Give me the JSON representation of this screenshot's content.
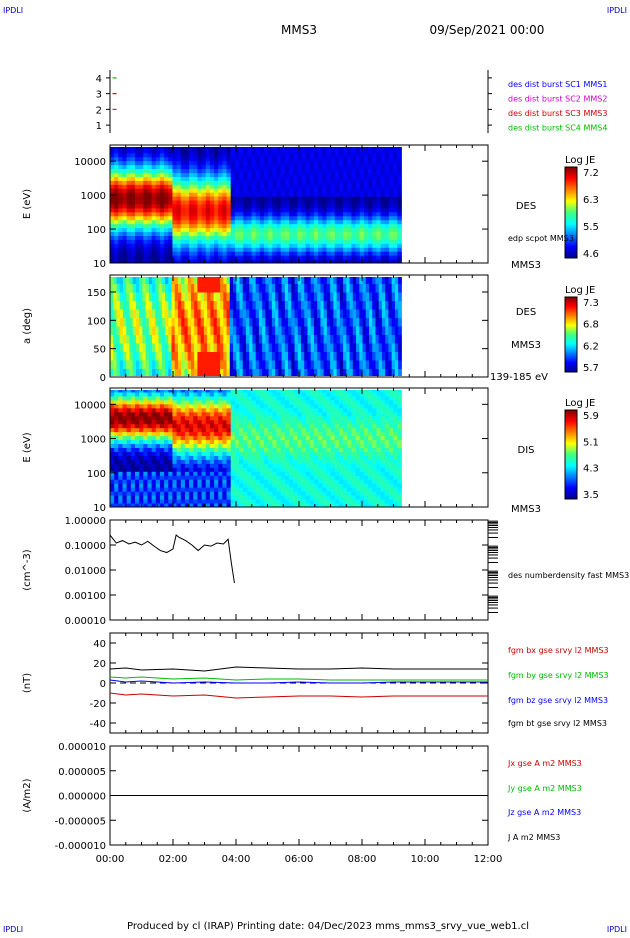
{
  "corners": {
    "tl": "IPDLI",
    "tr": "IPDLI",
    "bl": "IPDLI",
    "br": "IPDLI"
  },
  "header": {
    "spacecraft": "MMS3",
    "datetime": "09/Sep/2021 00:00"
  },
  "footer": {
    "text": "Produced by cl (IRAP)   Printing date: 04/Dec/2023   mms_mms3_srvy_vue_web1.cl"
  },
  "colors": {
    "c1": "#0000ff",
    "c2": "#cc00cc",
    "c3": "#cc0000",
    "c4": "#00bb00",
    "black": "#000000"
  },
  "chart_data": [
    {
      "type": "scatter",
      "ylim": [
        0.5,
        4.5
      ],
      "yticks": [
        "1",
        "2",
        "3",
        "4"
      ],
      "legend": [
        "des dist burst SC1 MMS1",
        "des dist burst SC2 MMS2",
        "des dist burst SC3 MMS3",
        "des dist burst SC4 MMS4"
      ],
      "marks": [
        {
          "sc": 4,
          "hour": 0.05,
          "color": "#00bb00"
        },
        {
          "sc": 3,
          "hour": 0.05,
          "color": "#cc0000"
        },
        {
          "sc": 2,
          "hour": 0.05,
          "color": "#cc00cc"
        }
      ]
    },
    {
      "type": "heatmap",
      "ylabel": "E (eV)",
      "yscale": "log",
      "ylim": [
        10,
        30000
      ],
      "yticks": [
        "10",
        "100",
        "1000",
        "10000"
      ],
      "data_end_hour": 9.25,
      "colorbar": {
        "label": "Log JE",
        "ticks": [
          "7.2",
          "6.3",
          "5.5",
          "4.6"
        ],
        "range": [
          4.6,
          7.2
        ]
      },
      "right_labels": [
        "DES",
        "edp scpot MMS3",
        "MMS3"
      ],
      "regions": [
        {
          "from": 0,
          "to": 2.0,
          "peak_eV": 800,
          "level": 1.0
        },
        {
          "from": 2.0,
          "to": 3.8,
          "peak_eV": 400,
          "level": 0.9
        },
        {
          "from": 3.8,
          "to": 9.25,
          "peak_eV": 60,
          "level": 0.55
        }
      ]
    },
    {
      "type": "heatmap",
      "ylabel": "a (deg)",
      "ylim": [
        0,
        180
      ],
      "yticks": [
        "0",
        "50",
        "100",
        "150"
      ],
      "data_end_hour": 9.25,
      "colorbar": {
        "label": "Log JE",
        "ticks": [
          "7.3",
          "6.8",
          "6.2",
          "5.7"
        ],
        "range": [
          5.7,
          7.3
        ]
      },
      "right_labels": [
        "DES",
        "MMS3",
        "139-185 eV"
      ]
    },
    {
      "type": "heatmap",
      "ylabel": "E (eV)",
      "yscale": "log",
      "ylim": [
        10,
        30000
      ],
      "yticks": [
        "10",
        "100",
        "1000",
        "10000"
      ],
      "data_end_hour": 9.25,
      "colorbar": {
        "label": "Log JE",
        "ticks": [
          "5.9",
          "5.1",
          "4.3",
          "3.5"
        ],
        "range": [
          3.5,
          5.9
        ]
      },
      "right_labels": [
        "DIS",
        "MMS3"
      ]
    },
    {
      "type": "line",
      "ylabel": "(cm^-3)",
      "yscale": "log",
      "ylim": [
        0.0001,
        1.0
      ],
      "yticks": [
        "0.00010",
        "0.00100",
        "0.01000",
        "0.10000",
        "1.00000"
      ],
      "series": [
        {
          "name": "des numberdensity fast MMS3",
          "color": "#000000",
          "x": [
            0.0,
            0.2,
            0.4,
            0.6,
            0.8,
            1.0,
            1.2,
            1.4,
            1.6,
            1.8,
            2.0,
            2.1,
            2.2,
            2.4,
            2.6,
            2.8,
            3.0,
            3.2,
            3.4,
            3.6,
            3.75,
            3.85,
            3.95
          ],
          "y": [
            0.25,
            0.12,
            0.15,
            0.11,
            0.13,
            0.1,
            0.14,
            0.09,
            0.06,
            0.05,
            0.07,
            0.25,
            0.2,
            0.15,
            0.1,
            0.06,
            0.1,
            0.09,
            0.12,
            0.11,
            0.17,
            0.02,
            0.003
          ]
        }
      ]
    },
    {
      "type": "line",
      "ylabel": "(nT)",
      "ylim": [
        -50,
        50
      ],
      "yticks": [
        "-40",
        "-20",
        "0",
        "20",
        "40"
      ],
      "series": [
        {
          "name": "fgm bx gse srvy l2 MMS3",
          "color": "#cc0000",
          "x": [
            0,
            0.5,
            1,
            2,
            3,
            4,
            5,
            6,
            7,
            8,
            9,
            10,
            11,
            12
          ],
          "y": [
            -10,
            -12,
            -11,
            -13,
            -12,
            -15,
            -14,
            -13,
            -13,
            -14,
            -13,
            -13,
            -13,
            -13
          ]
        },
        {
          "name": "fgm by gse srvy l2 MMS3",
          "color": "#00bb00",
          "x": [
            0,
            0.5,
            1,
            2,
            3,
            4,
            5,
            6,
            7,
            8,
            9,
            10,
            11,
            12
          ],
          "y": [
            6,
            5,
            6,
            4,
            5,
            3,
            4,
            4,
            3,
            3,
            3,
            3,
            3,
            3
          ]
        },
        {
          "name": "fgm bz gse srvy l2 MMS3",
          "color": "#0000ff",
          "x": [
            0,
            0.5,
            1,
            2,
            3,
            4,
            5,
            6,
            7,
            8,
            9,
            10,
            11,
            12
          ],
          "y": [
            3,
            1,
            2,
            0,
            1,
            0,
            0,
            1,
            0,
            0,
            1,
            1,
            1,
            1
          ]
        },
        {
          "name": "fgm bt gse srvy l2 MMS3",
          "color": "#000000",
          "x": [
            0,
            0.5,
            1,
            2,
            3,
            4,
            5,
            6,
            7,
            8,
            9,
            10,
            11,
            12
          ],
          "y": [
            14,
            15,
            13,
            14,
            12,
            16,
            15,
            14,
            14,
            15,
            14,
            14,
            14,
            14
          ]
        }
      ]
    },
    {
      "type": "line",
      "ylabel": "(A/m2)",
      "ylim": [
        -1e-05,
        1e-05
      ],
      "yticks": [
        "-0.000010",
        "-0.000005",
        "0.000000",
        "0.000005",
        "0.000010"
      ],
      "xlabel_ticks": [
        "00:00",
        "02:00",
        "04:00",
        "06:00",
        "08:00",
        "10:00",
        "12:00"
      ],
      "xlim_hours": [
        0,
        12
      ],
      "series": [
        {
          "name": "Jx gse A m2 MMS3",
          "color": "#cc0000",
          "x": [
            0,
            12
          ],
          "y": [
            0,
            0
          ]
        },
        {
          "name": "Jy gse A m2 MMS3",
          "color": "#00bb00",
          "x": [
            0,
            12
          ],
          "y": [
            0,
            0
          ]
        },
        {
          "name": "Jz gse A m2 MMS3",
          "color": "#0000ff",
          "x": [
            0,
            12
          ],
          "y": [
            0,
            0
          ]
        },
        {
          "name": "J A m2 MMS3",
          "color": "#000000",
          "x": [
            0,
            12
          ],
          "y": [
            0,
            0
          ]
        }
      ]
    }
  ]
}
